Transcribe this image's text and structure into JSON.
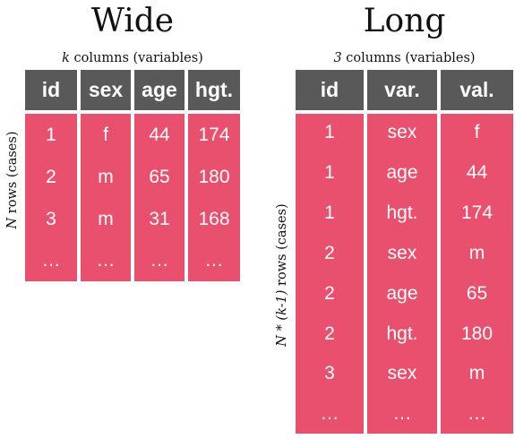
{
  "wide": {
    "title": "Wide",
    "subtitle_var": "k",
    "subtitle_rest": " columns (variables)",
    "rows_label_var": "N",
    "rows_label_rest": " rows (cases)",
    "headers": [
      "id",
      "sex",
      "age",
      "hgt."
    ],
    "rows": [
      [
        "1",
        "f",
        "44",
        "174"
      ],
      [
        "2",
        "m",
        "65",
        "180"
      ],
      [
        "3",
        "m",
        "31",
        "168"
      ],
      [
        "…",
        "…",
        "…",
        "…"
      ]
    ]
  },
  "long": {
    "title": "Long",
    "subtitle_var": "3",
    "subtitle_rest": " columns (variables)",
    "rows_label_var": "N * (k-1)",
    "rows_label_rest": " rows (cases)",
    "headers": [
      "id",
      "var.",
      "val."
    ],
    "rows": [
      [
        "1",
        "sex",
        "f"
      ],
      [
        "1",
        "age",
        "44"
      ],
      [
        "1",
        "hgt.",
        "174"
      ],
      [
        "2",
        "sex",
        "m"
      ],
      [
        "2",
        "age",
        "65"
      ],
      [
        "2",
        "hgt.",
        "180"
      ],
      [
        "3",
        "sex",
        "m"
      ],
      [
        "…",
        "…",
        "…"
      ]
    ]
  },
  "colors": {
    "header": "#595959",
    "body": "#e8506d",
    "text": "#ffffff"
  }
}
